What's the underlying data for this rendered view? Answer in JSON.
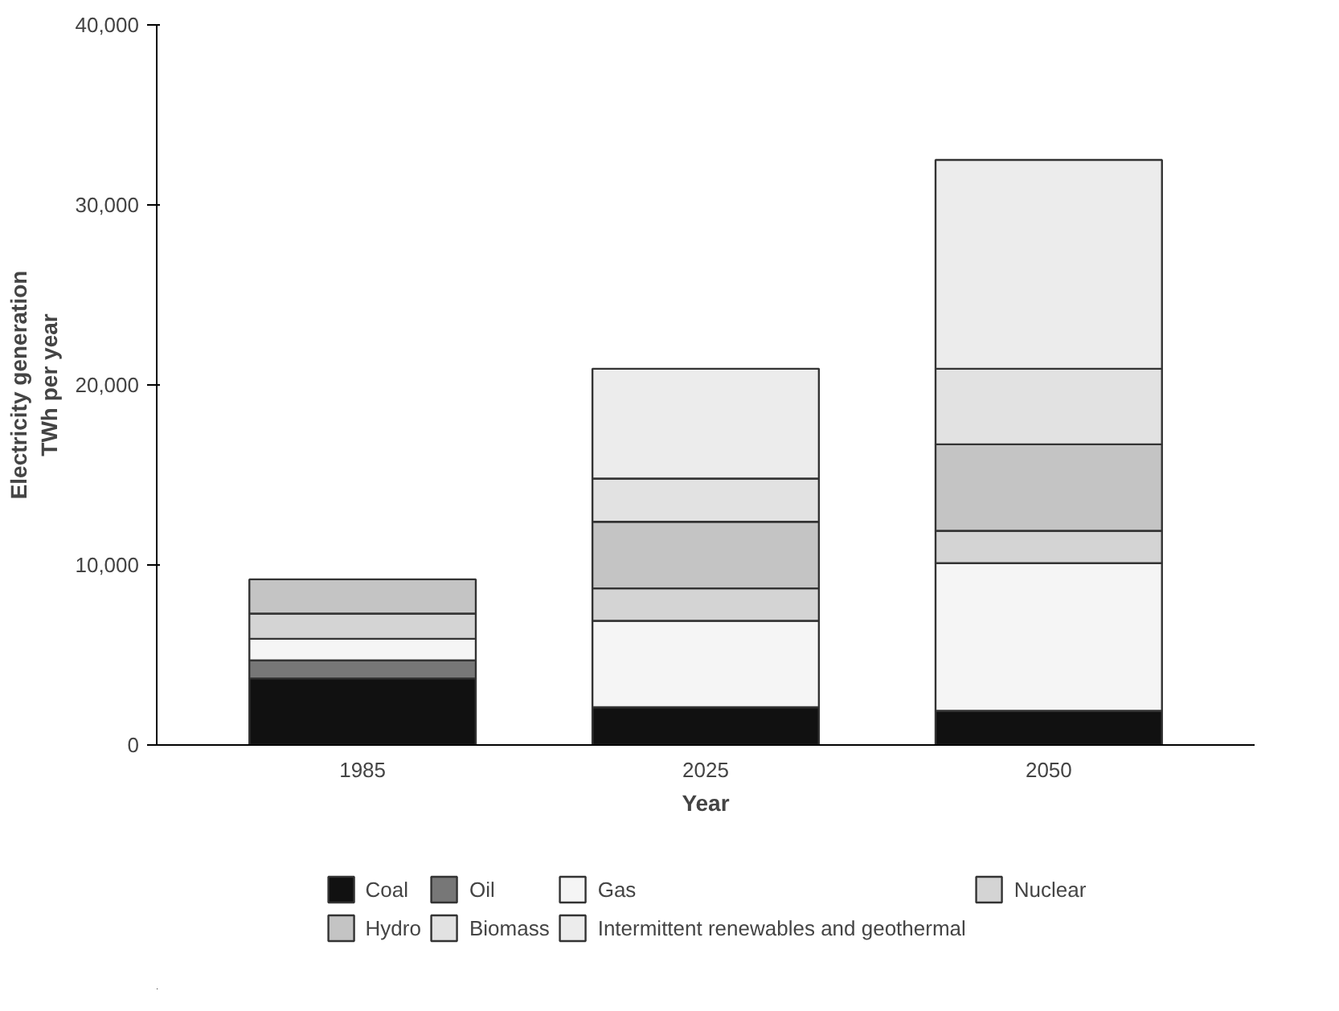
{
  "chart_data": {
    "type": "bar",
    "stacked": true,
    "xlabel": "Year",
    "ylabel": "Electricity generation\nTWh per year",
    "categories": [
      "1985",
      "2025",
      "2050"
    ],
    "ylim": [
      0,
      40000
    ],
    "yticks": [
      0,
      {
        "value": 10000,
        "label": "10,000"
      },
      {
        "value": 20000,
        "label": "20,000"
      },
      {
        "value": 30000,
        "label": "30,000"
      },
      {
        "value": 40000,
        "label": "40,000"
      }
    ],
    "grid": false,
    "legend": "bottom",
    "series": [
      {
        "name": "Coal",
        "color": "#111111",
        "values": [
          3700,
          2100,
          1900
        ]
      },
      {
        "name": "Oil",
        "color": "#777777",
        "values": [
          1000,
          null,
          null
        ]
      },
      {
        "name": "Gas",
        "color": "#f5f5f5",
        "values": [
          1200,
          4800,
          8200
        ]
      },
      {
        "name": "Nuclear",
        "color": "#d4d4d4",
        "values": [
          1400,
          1800,
          1800
        ]
      },
      {
        "name": "Hydro",
        "color": "#c4c4c4",
        "values": [
          1900,
          3700,
          4800
        ]
      },
      {
        "name": "Biomass",
        "color": "#e2e2e2",
        "values": [
          null,
          2400,
          4200
        ]
      },
      {
        "name": "Intermittent renewables and geothermal",
        "color": "#ececec",
        "values": [
          null,
          6100,
          11600
        ]
      }
    ]
  }
}
